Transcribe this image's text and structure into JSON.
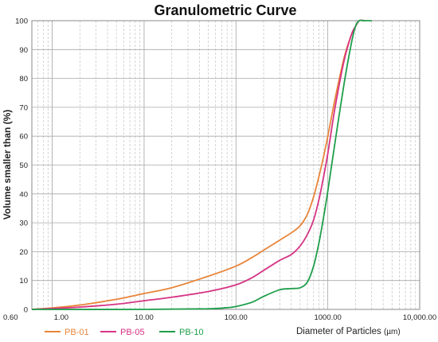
{
  "chart_data": {
    "type": "line",
    "title": "Granulometric Curve",
    "xlabel": "Diameter of Particles",
    "xlabel_unit": "(µm)",
    "ylabel": "Volume smaller than (%)",
    "x_scale": "log",
    "xlim": [
      0.6,
      10000
    ],
    "ylim": [
      0,
      100
    ],
    "grid": true,
    "legend_position": "bottom-left",
    "x_tick_labels": [
      "0.60",
      "1.00",
      "10.00",
      "100.00",
      "1000.00",
      "10,000.00"
    ],
    "x_tick_values": [
      0.6,
      1,
      10,
      100,
      1000,
      10000
    ],
    "y_tick_values": [
      0,
      10,
      20,
      30,
      40,
      50,
      60,
      70,
      80,
      90,
      100
    ],
    "series": [
      {
        "name": "PB-01",
        "color": "#e8853a",
        "x": [
          0.6,
          1,
          2,
          5,
          10,
          20,
          50,
          100,
          150,
          200,
          300,
          400,
          500,
          600,
          700,
          800,
          900,
          1000,
          1200,
          1500,
          1800,
          2000,
          2200,
          2500
        ],
        "y": [
          0,
          0.5,
          1.5,
          3.5,
          5.5,
          7.5,
          11.5,
          15,
          18,
          20.5,
          24,
          26.5,
          29,
          33,
          39,
          46,
          53,
          60,
          73,
          87,
          95,
          98,
          100,
          100
        ]
      },
      {
        "name": "PB-05",
        "color": "#d63384",
        "x": [
          0.6,
          1,
          2,
          5,
          10,
          20,
          50,
          100,
          150,
          200,
          300,
          400,
          500,
          600,
          700,
          800,
          900,
          1000,
          1200,
          1500,
          1800,
          2000,
          2200,
          2500
        ],
        "y": [
          0,
          0.3,
          0.8,
          1.8,
          3,
          4.2,
          6.2,
          8.5,
          11,
          13.5,
          17,
          19,
          22,
          26,
          31,
          38,
          46,
          54,
          70,
          86,
          95,
          98,
          100,
          100
        ]
      },
      {
        "name": "PB-10",
        "color": "#1e9e4a",
        "x": [
          0.6,
          10,
          50,
          80,
          100,
          150,
          200,
          300,
          400,
          500,
          600,
          700,
          800,
          900,
          1000,
          1200,
          1500,
          1800,
          2000,
          2200,
          2500,
          3000
        ],
        "y": [
          0,
          0,
          0.2,
          0.6,
          1,
          2.5,
          4.5,
          6.8,
          7.2,
          7.5,
          9.5,
          15,
          23,
          32,
          41,
          58,
          78,
          92,
          98,
          100,
          100,
          100
        ]
      }
    ]
  }
}
